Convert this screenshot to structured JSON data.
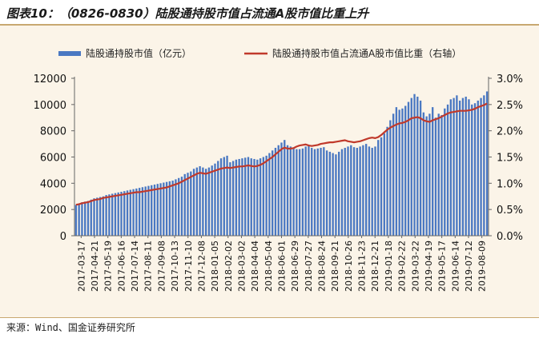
{
  "title": "图表10：（0826-0830）陆股通持股市值占流通A股市值比重上升",
  "source": "来源：Wind、国金证券研究所",
  "colors": {
    "bar": "#4a78c2",
    "line": "#c0392b",
    "background": "#fbf4e8",
    "rule": "#c8a870"
  },
  "chart_data": {
    "type": "bar+line",
    "legend_position": "top",
    "x_tick_labels": [
      "2017-03-17",
      "2017-04-21",
      "2017-05-19",
      "2017-06-16",
      "2017-07-14",
      "2017-08-11",
      "2017-09-08",
      "2017-10-13",
      "2017-11-10",
      "2017-12-08",
      "2018-01-05",
      "2018-02-02",
      "2018-03-02",
      "2018-04-04",
      "2018-05-04",
      "2018-06-01",
      "2018-06-29",
      "2018-07-27",
      "2018-08-24",
      "2018-09-21",
      "2018-10-26",
      "2018-11-23",
      "2018-12-21",
      "2019-01-18",
      "2019-02-22",
      "2019-03-22",
      "2019-04-19",
      "2019-05-17",
      "2019-06-14",
      "2019-07-12",
      "2019-08-09"
    ],
    "y_left": {
      "min": 0,
      "max": 12000,
      "ticks": [
        "0",
        "2000",
        "4000",
        "6000",
        "8000",
        "10000",
        "12000"
      ]
    },
    "y_right": {
      "min": 0,
      "max": 3.0,
      "ticks": [
        "0.0%",
        "0.5%",
        "1.0%",
        "1.5%",
        "2.0%",
        "2.5%",
        "3.0%"
      ]
    },
    "series": [
      {
        "name": "陆股通持股市值（亿元）",
        "axis": "left",
        "type": "bar",
        "values": [
          2350,
          2450,
          2550,
          2600,
          2650,
          2750,
          2850,
          2900,
          2950,
          3000,
          3100,
          3150,
          3200,
          3250,
          3300,
          3350,
          3400,
          3450,
          3500,
          3550,
          3600,
          3650,
          3700,
          3750,
          3800,
          3850,
          3900,
          3950,
          4000,
          4050,
          4100,
          4150,
          4200,
          4300,
          4400,
          4500,
          4700,
          4800,
          4900,
          5100,
          5200,
          5300,
          5200,
          5100,
          5200,
          5350,
          5500,
          5700,
          5900,
          6000,
          6100,
          5600,
          5700,
          5800,
          5850,
          5900,
          5950,
          6000,
          5900,
          5850,
          5800,
          5900,
          6000,
          6100,
          6300,
          6500,
          6700,
          6900,
          7100,
          7300,
          6900,
          6800,
          6700,
          6600,
          6600,
          6650,
          6800,
          6900,
          6700,
          6600,
          6650,
          6700,
          6750,
          6500,
          6400,
          6300,
          6200,
          6400,
          6600,
          6700,
          6800,
          6900,
          6750,
          6700,
          6800,
          6900,
          7000,
          6800,
          6700,
          6800,
          7300,
          7500,
          7800,
          8300,
          8800,
          9300,
          9800,
          9600,
          9700,
          9900,
          10200,
          10500,
          10800,
          10600,
          10300,
          9400,
          9100,
          9300,
          9800,
          9000,
          9300,
          9200,
          9700,
          10000,
          10400,
          10500,
          10700,
          10300,
          10500,
          10600,
          10400,
          10000,
          10100,
          10300,
          10500,
          10700,
          11000
        ]
      },
      {
        "name": "陆股通持股市值占流通A股市值比重（右轴）",
        "axis": "right",
        "type": "line",
        "values": [
          0.59,
          0.6,
          0.62,
          0.63,
          0.64,
          0.66,
          0.68,
          0.69,
          0.7,
          0.72,
          0.73,
          0.74,
          0.75,
          0.76,
          0.77,
          0.78,
          0.79,
          0.8,
          0.81,
          0.82,
          0.83,
          0.83,
          0.84,
          0.85,
          0.86,
          0.87,
          0.88,
          0.89,
          0.9,
          0.91,
          0.92,
          0.94,
          0.96,
          0.98,
          1.0,
          1.03,
          1.06,
          1.09,
          1.12,
          1.15,
          1.18,
          1.2,
          1.19,
          1.18,
          1.2,
          1.22,
          1.24,
          1.26,
          1.28,
          1.29,
          1.3,
          1.29,
          1.3,
          1.31,
          1.32,
          1.32,
          1.33,
          1.34,
          1.33,
          1.32,
          1.33,
          1.35,
          1.38,
          1.42,
          1.46,
          1.5,
          1.55,
          1.6,
          1.65,
          1.68,
          1.66,
          1.66,
          1.67,
          1.7,
          1.72,
          1.73,
          1.74,
          1.72,
          1.71,
          1.72,
          1.73,
          1.75,
          1.76,
          1.77,
          1.78,
          1.78,
          1.79,
          1.8,
          1.81,
          1.82,
          1.8,
          1.79,
          1.78,
          1.79,
          1.8,
          1.82,
          1.84,
          1.86,
          1.87,
          1.86,
          1.88,
          1.92,
          1.97,
          2.02,
          2.06,
          2.09,
          2.12,
          2.14,
          2.15,
          2.17,
          2.2,
          2.24,
          2.25,
          2.26,
          2.24,
          2.2,
          2.18,
          2.17,
          2.2,
          2.22,
          2.24,
          2.27,
          2.3,
          2.33,
          2.35,
          2.36,
          2.37,
          2.38,
          2.38,
          2.38,
          2.39,
          2.4,
          2.42,
          2.45,
          2.47,
          2.49,
          2.52
        ]
      }
    ]
  }
}
